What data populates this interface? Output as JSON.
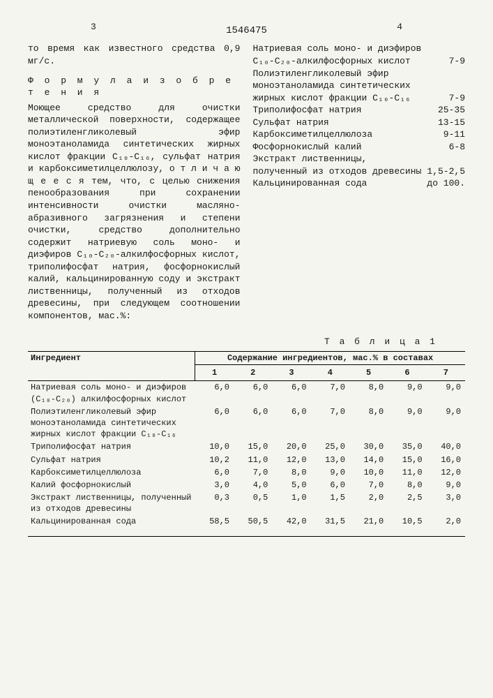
{
  "page": {
    "left_num": "3",
    "right_num": "4",
    "patent": "1546475"
  },
  "left": {
    "top_line": "то время как известного средства 0,9 мг/с.",
    "formula_title": "Ф о р м у л а  и з о б р е т е н и я",
    "body": "Моющее средство для очистки металлической поверхности, содержащее полиэтиленгликолевый эфир моноэтаноламида синтетических жирных кислот фракции C₁₀-C₁₆, сульфат натрия и карбоксиметилцеллюлозу, о т л и ч а ю щ е е с я тем, что, с целью снижения пенообразования при сохранении интенсивности очистки масляно-абразивного загрязнения и степени очистки, средство дополнительно содержит натриевую соль моно- и диэфиров C₁₀-C₂₀-алкилфосфорных кислот, триполифосфат натрия, фосфорнокислый калий, кальцинированную соду и экстракт лиственницы, полученный из отходов древесины, при следующем соотношении компонентов, мас.%:"
  },
  "components": [
    {
      "name": "Натриевая соль моно- и диэфиров C₁₀-C₂₀-алкилфосфорных кислот",
      "val": "7-9"
    },
    {
      "name": "Полиэтиленгликолевый эфир моноэтаноламида синтетических жирных кислот фракции C₁₀-C₁₆",
      "val": "7-9"
    },
    {
      "name": "Триполифосфат натрия",
      "val": "25-35"
    },
    {
      "name": "Сульфат натрия",
      "val": "13-15"
    },
    {
      "name": "Карбоксиметилцеллюлоза",
      "val": "9-11"
    },
    {
      "name": "Фосфорнокислый калий",
      "val": "6-8"
    },
    {
      "name": "Экстракт лиственницы, полученный из отходов древесины",
      "val": "1,5-2,5"
    },
    {
      "name": "Кальцинированная сода",
      "val": "до 100."
    }
  ],
  "table": {
    "caption": "Т а б л и ц а 1",
    "h_ingredient": "Ингредиент",
    "h_content": "Содержание ингредиентов, мас.% в составах",
    "cols": [
      "1",
      "2",
      "3",
      "4",
      "5",
      "6",
      "7"
    ],
    "rows": [
      {
        "name": "Натриевая соль моно- и диэфиров (C₁₀-C₂₀) алкилфосфорных кислот",
        "v": [
          "6,0",
          "6,0",
          "6,0",
          "7,0",
          "8,0",
          "9,0",
          "9,0"
        ]
      },
      {
        "name": "Полиэтиленгликолевый эфир моноэтаноламида синтетических жирных кислот фракции C₁₀-C₁₆",
        "v": [
          "6,0",
          "6,0",
          "6,0",
          "7,0",
          "8,0",
          "9,0",
          "9,0"
        ]
      },
      {
        "name": "Триполифосфат натрия",
        "v": [
          "10,0",
          "15,0",
          "20,0",
          "25,0",
          "30,0",
          "35,0",
          "40,0"
        ]
      },
      {
        "name": "Сульфат натрия",
        "v": [
          "10,2",
          "11,0",
          "12,0",
          "13,0",
          "14,0",
          "15,0",
          "16,0"
        ]
      },
      {
        "name": "Карбоксиметилцеллюлоза",
        "v": [
          "6,0",
          "7,0",
          "8,0",
          "9,0",
          "10,0",
          "11,0",
          "12,0"
        ]
      },
      {
        "name": "Калий фосфорнокислый",
        "v": [
          "3,0",
          "4,0",
          "5,0",
          "6,0",
          "7,0",
          "8,0",
          "9,0"
        ]
      },
      {
        "name": "Экстракт лиственницы, полученный из отходов древесины",
        "v": [
          "0,3",
          "0,5",
          "1,0",
          "1,5",
          "2,0",
          "2,5",
          "3,0"
        ]
      },
      {
        "name": "Кальцинированная сода",
        "v": [
          "58,5",
          "50,5",
          "42,0",
          "31,5",
          "21,0",
          "10,5",
          "2,0"
        ]
      }
    ]
  }
}
